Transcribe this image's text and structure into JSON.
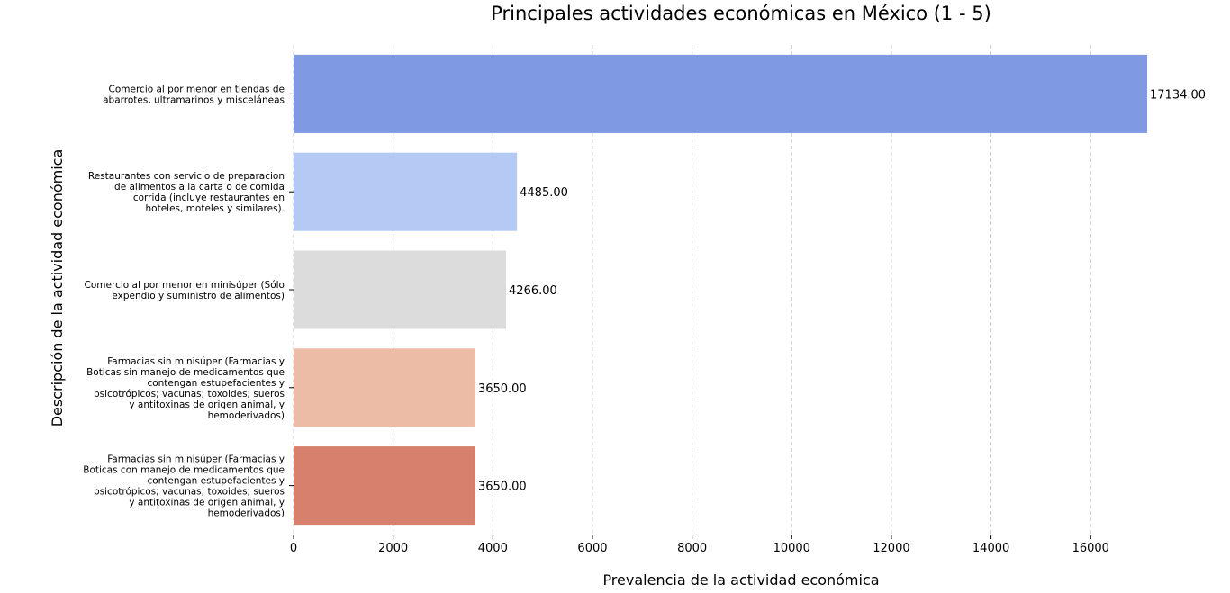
{
  "chart_data": {
    "type": "bar",
    "orientation": "horizontal",
    "title": "Principales actividades económicas en México (1 - 5)",
    "xlabel": "Prevalencia de la actividad económica",
    "ylabel": "Descripción de la actividad económica",
    "xlim": [
      0,
      17134
    ],
    "xticks": [
      0,
      2000,
      4000,
      6000,
      8000,
      10000,
      12000,
      14000,
      16000
    ],
    "grid": "x-dashed",
    "categories": [
      "Comercio al por menor en tiendas de abarrotes, ultramarinos y misceláneas",
      "Restaurantes con servicio de preparacion de alimentos a la carta o de comida corrida (incluye restaurantes en hoteles, moteles y similares).",
      "Comercio al por menor en minisúper (Sólo expendio y suministro de alimentos)",
      "Farmacias sin minisúper (Farmacias y Boticas sin manejo de medicamentos que contengan estupefacientes y psicotrópicos; vacunas; toxoides; sueros y antitoxinas de origen animal, y hemoderivados)",
      "Farmacias sin minisúper (Farmacias y Boticas con manejo de medicamentos que contengan estupefacientes y psicotrópicos; vacunas; toxoides; sueros y antitoxinas de origen animal, y hemoderivados)"
    ],
    "category_lines": [
      [
        "Comercio al por menor en tiendas de",
        "abarrotes, ultramarinos y misceláneas"
      ],
      [
        "Restaurantes con servicio de preparacion",
        "de alimentos a la carta o de comida",
        "corrida (incluye restaurantes en",
        "hoteles, moteles y similares)."
      ],
      [
        "Comercio al por menor en minisúper (Sólo",
        "expendio y suministro de alimentos)"
      ],
      [
        "Farmacias sin minisúper (Farmacias y",
        "Boticas sin manejo de medicamentos que",
        "contengan estupefacientes y",
        "psicotrópicos; vacunas; toxoides; sueros",
        "y antitoxinas de origen animal, y",
        "hemoderivados)"
      ],
      [
        "Farmacias sin minisúper (Farmacias y",
        "Boticas con manejo de medicamentos que",
        "contengan estupefacientes y",
        "psicotrópicos; vacunas; toxoides; sueros",
        "y antitoxinas de origen animal, y",
        "hemoderivados)"
      ]
    ],
    "values": [
      17134,
      4485,
      4266,
      3650,
      3650
    ],
    "data_labels": [
      "17134.00",
      "4485.00",
      "4266.00",
      "3650.00",
      "3650.00"
    ],
    "colors": [
      "#7f9ae3",
      "#b4c9f3",
      "#dcdcdc",
      "#ecbca7",
      "#d6806d"
    ]
  }
}
